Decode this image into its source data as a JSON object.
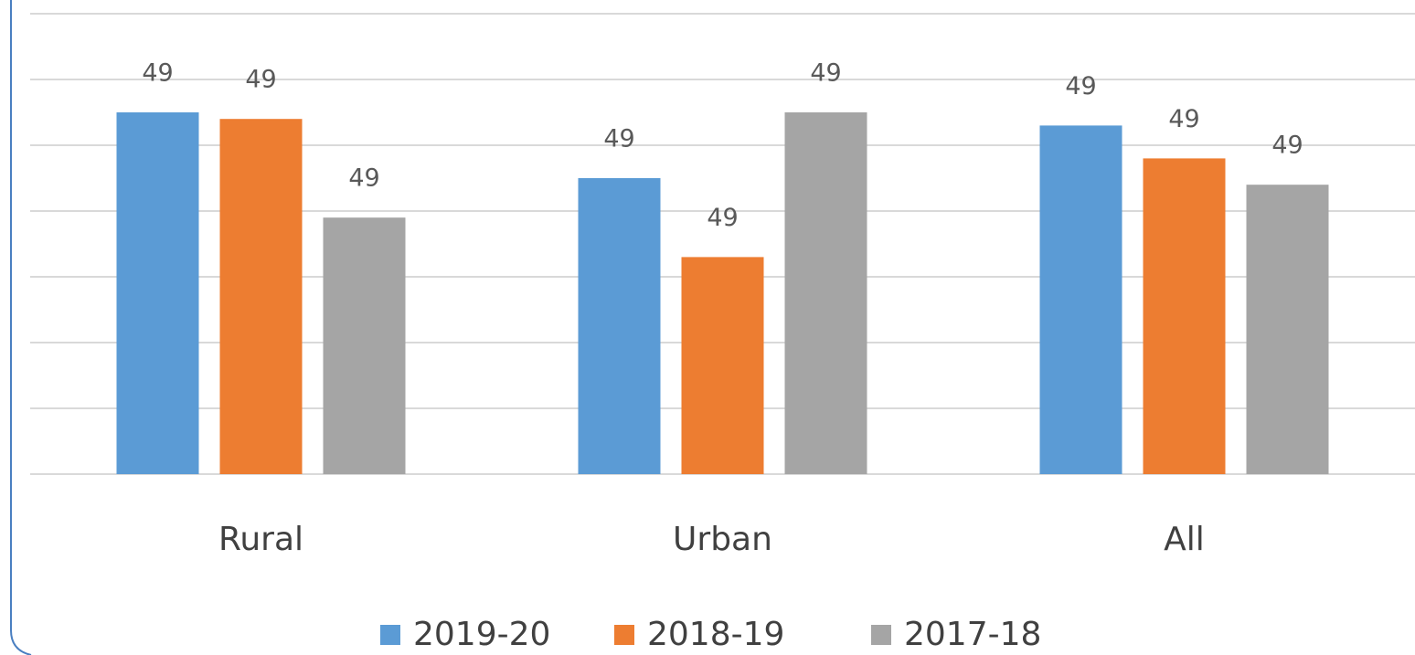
{
  "chart_data": {
    "type": "bar",
    "categories": [
      "Rural",
      "Urban",
      "All"
    ],
    "series": [
      {
        "name": "2019-20",
        "color": "#5b9bd5",
        "values": [
          49.15,
          49.05,
          49.13
        ],
        "value_labels": [
          "49",
          "49",
          "49"
        ]
      },
      {
        "name": "2018-19",
        "color": "#ed7d31",
        "values": [
          49.14,
          48.93,
          49.08
        ],
        "value_labels": [
          "49",
          "49",
          "49"
        ]
      },
      {
        "name": "2017-18",
        "color": "#a5a5a5",
        "values": [
          48.99,
          49.15,
          49.04
        ],
        "value_labels": [
          "49",
          "49",
          "49"
        ]
      }
    ],
    "ylim": [
      48.6,
      49.3
    ],
    "yticks": [
      48.6,
      48.7,
      48.8,
      48.9,
      49.0,
      49.1,
      49.2,
      49.3
    ],
    "grid": true,
    "legend": "bottom"
  }
}
